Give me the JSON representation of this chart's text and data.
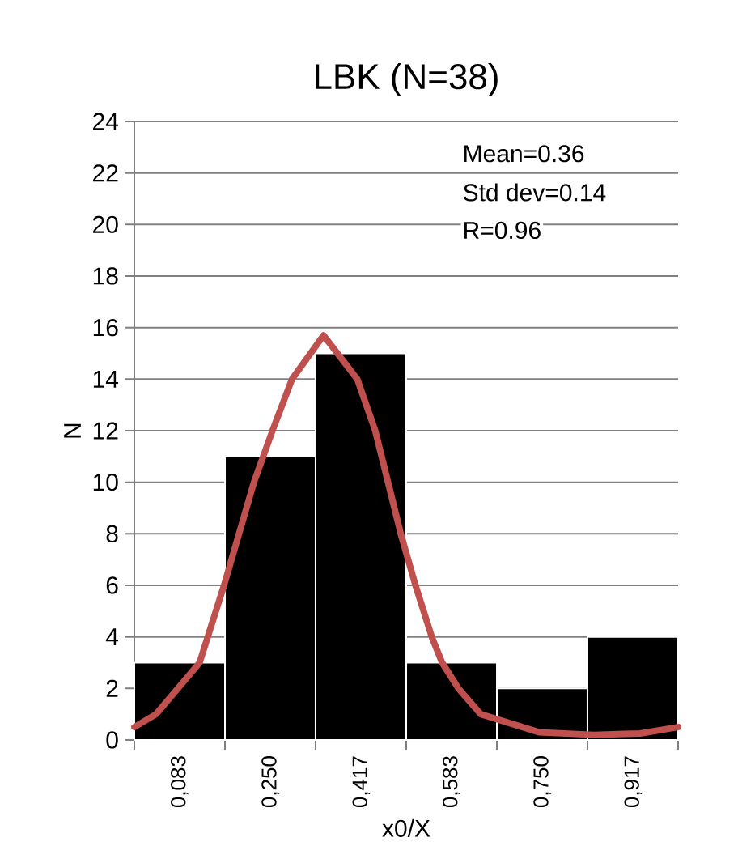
{
  "chart_data": {
    "type": "histogram",
    "title": "LBK (N=38)",
    "xlabel": "x0/X",
    "ylabel": "N",
    "annotations": [
      "Mean=0.36",
      "Std dev=0.14",
      "R=0.96"
    ],
    "color": "#000000",
    "bins": [
      0,
      0.1667,
      0.3333,
      0.5,
      0.6667,
      0.8333,
      1
    ],
    "values": [
      3,
      11,
      15,
      3,
      2,
      4
    ],
    "series": [
      {
        "type": "line",
        "color": "#c0504d",
        "x": [
          0,
          0.04,
          0.08,
          0.12,
          0.165,
          0.22,
          0.254,
          0.29,
          0.348,
          0.41,
          0.443,
          0.49,
          0.517,
          0.547,
          0.566,
          0.596,
          0.637,
          0.744,
          0.845,
          0.93,
          1
        ],
        "values": [
          0.5,
          1,
          2,
          3,
          6,
          10,
          12,
          14,
          15.7,
          14,
          12,
          8,
          6,
          4,
          3,
          2,
          1,
          0.3,
          0.2,
          0.25,
          0.5
        ]
      }
    ],
    "xlim": [
      0,
      1
    ],
    "ylim": [
      0,
      24
    ],
    "xticks": [
      {
        "value": 0.083,
        "label": "0,083"
      },
      {
        "value": 0.25,
        "label": "0,250"
      },
      {
        "value": 0.417,
        "label": "0,417"
      },
      {
        "value": 0.583,
        "label": "0,583"
      },
      {
        "value": 0.75,
        "label": "0,750"
      },
      {
        "value": 0.917,
        "label": "0,917"
      }
    ],
    "yticks": [
      0,
      2,
      4,
      6,
      8,
      10,
      12,
      14,
      16,
      18,
      20,
      22,
      24
    ],
    "grid": "y"
  }
}
